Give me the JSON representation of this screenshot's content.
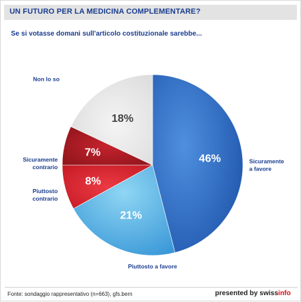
{
  "header": {
    "title": "UN FUTURO PER LA MEDICINA COMPLEMENTARE?",
    "subtitle": "Se si votasse domani sull'articolo costituzionale sarebbe..."
  },
  "chart_data": {
    "type": "pie",
    "categories": [
      "Sicuramente a favore",
      "Piuttosto a favore",
      "Piuttosto contrario",
      "Sicuramente contrario",
      "Non lo so"
    ],
    "values": [
      46,
      21,
      8,
      7,
      18
    ],
    "value_labels": [
      "46%",
      "21%",
      "8%",
      "7%",
      "18%"
    ],
    "colors": [
      "#2f6cc4",
      "#6cc3ea",
      "#d8222d",
      "#b01b24",
      "#e9e9e9"
    ],
    "legend_position": "labels beside slices"
  },
  "footer": {
    "source": "Fonte: sondaggio rappresentativo (n=663), gfs.bern",
    "brand_prefix": "presented by swiss",
    "brand_suffix": "info"
  }
}
